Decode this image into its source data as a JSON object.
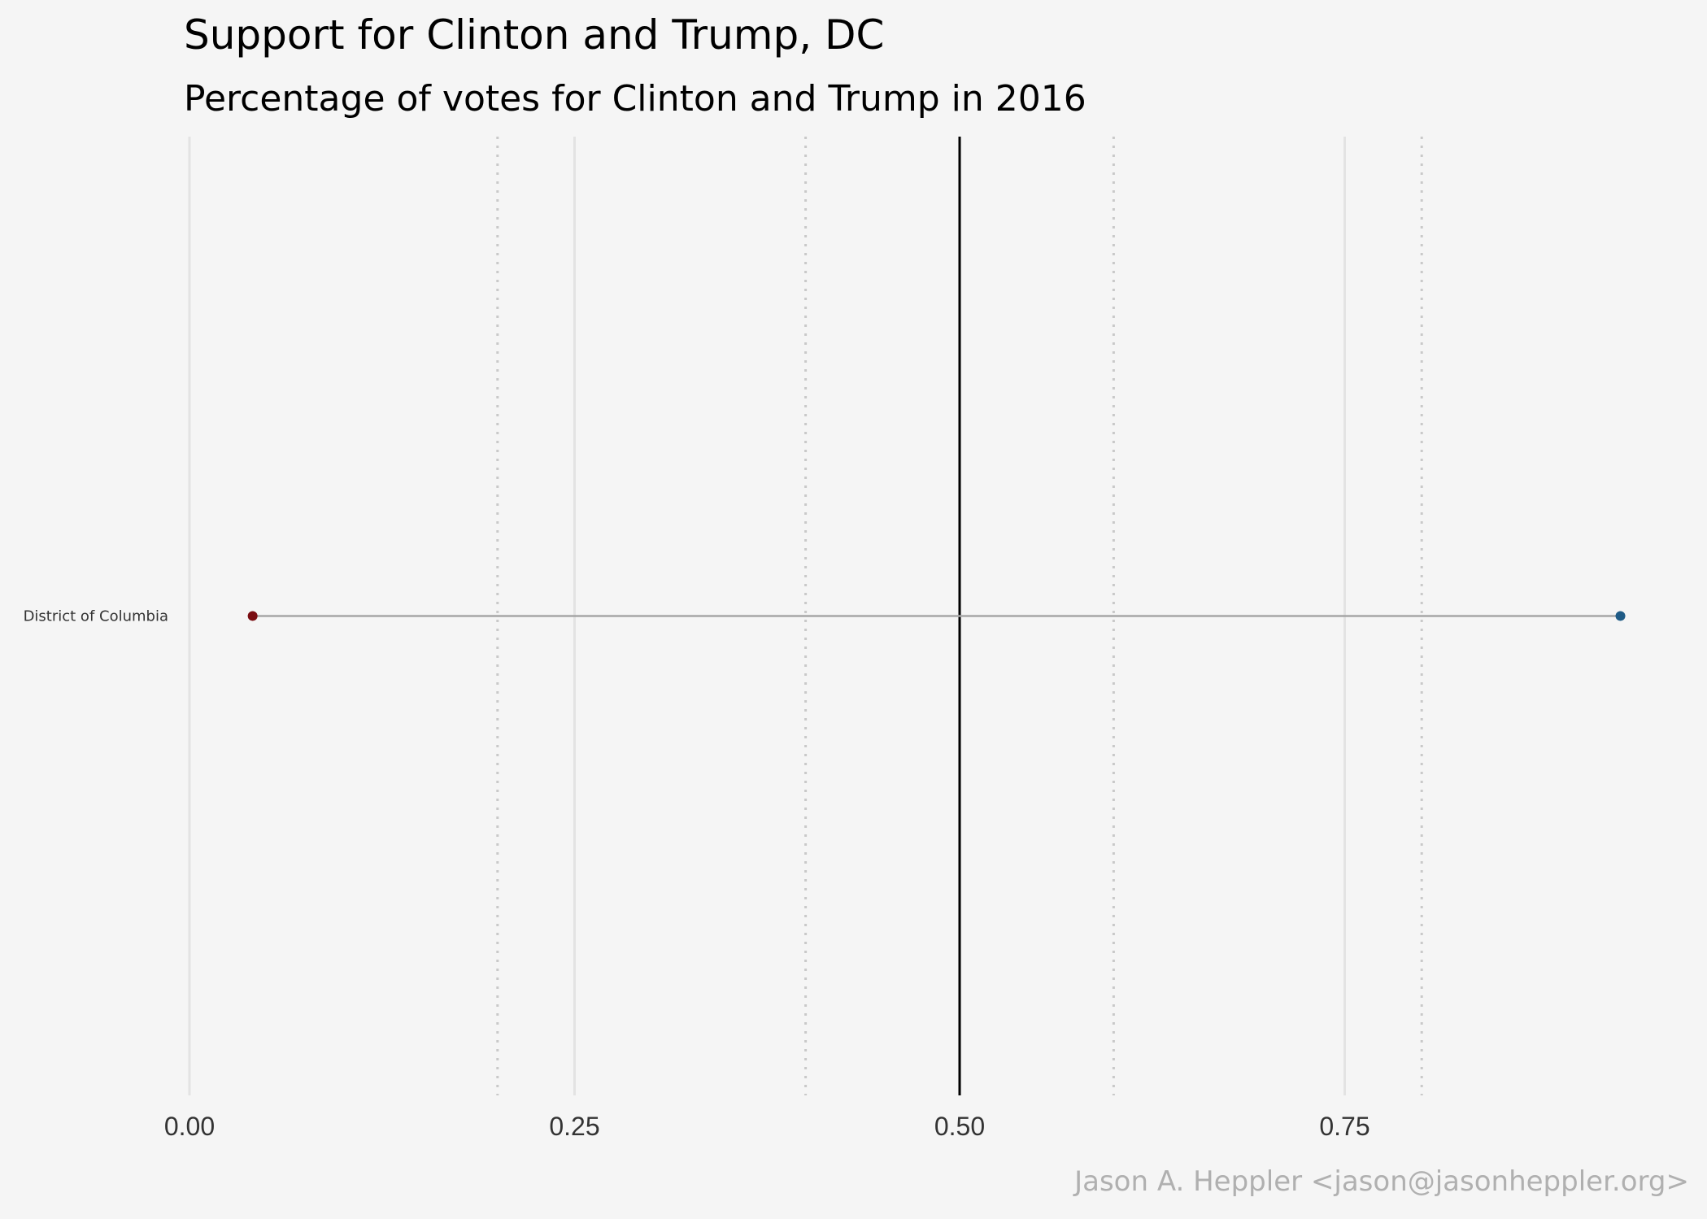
{
  "chart_data": {
    "type": "dumbbell",
    "title": "Support for Clinton and Trump,  DC",
    "subtitle": "Percentage of votes for Clinton and Trump in 2016",
    "caption": "Jason A. Heppler <jason@jasonheppler.org>",
    "xlim": [
      0,
      0.98
    ],
    "x_ticks": [
      {
        "value": 0.0,
        "label": "0.00"
      },
      {
        "value": 0.25,
        "label": "0.25"
      },
      {
        "value": 0.5,
        "label": "0.50"
      },
      {
        "value": 0.75,
        "label": "0.75"
      }
    ],
    "minor_gridlines": [
      0.2,
      0.4,
      0.6,
      0.8
    ],
    "reference_line": 0.5,
    "categories": [
      "District of Columbia"
    ],
    "series": [
      {
        "values": [
          0.041
        ],
        "color": "#7a0d12"
      },
      {
        "values": [
          0.929
        ],
        "color": "#1f5b86"
      }
    ],
    "segment_color": "#a6a6a6",
    "grid": true,
    "colors": {
      "background": "#f5f5f5",
      "major_grid": "#e3e3e3",
      "minor_grid": "#c9c9c9",
      "reference": "#000000"
    }
  }
}
